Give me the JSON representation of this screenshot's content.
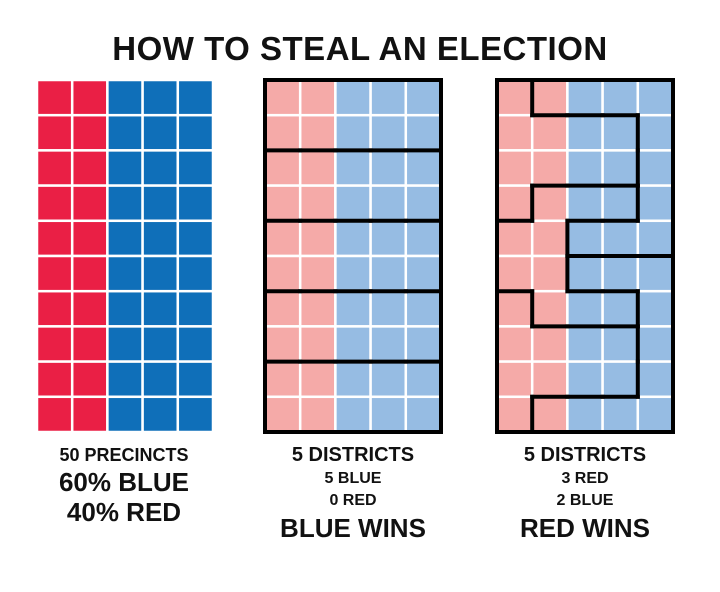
{
  "title": "HOW TO STEAL AN ELECTION",
  "colors": {
    "red": "#ea1f45",
    "blue": "#0f6fb9",
    "light_red": "#f5aaa8",
    "light_blue": "#96bce3",
    "cell_border": "#ffffff",
    "district_border": "#000000"
  },
  "grid": {
    "rows": 10,
    "cols": 5,
    "red_columns": 2
  },
  "panels": [
    {
      "caption": [
        "50 PRECINCTS",
        "60% BLUE",
        "40% RED"
      ],
      "style": "solid",
      "districts": null
    },
    {
      "caption": [
        "5 DISTRICTS",
        "5 BLUE",
        "0 RED",
        "BLUE WINS"
      ],
      "style": "light",
      "districts": [
        [
          1,
          1,
          1,
          1,
          1
        ],
        [
          1,
          1,
          1,
          1,
          1
        ],
        [
          2,
          2,
          2,
          2,
          2
        ],
        [
          2,
          2,
          2,
          2,
          2
        ],
        [
          3,
          3,
          3,
          3,
          3
        ],
        [
          3,
          3,
          3,
          3,
          3
        ],
        [
          4,
          4,
          4,
          4,
          4
        ],
        [
          4,
          4,
          4,
          4,
          4
        ],
        [
          5,
          5,
          5,
          5,
          5
        ],
        [
          5,
          5,
          5,
          5,
          5
        ]
      ]
    },
    {
      "caption": [
        "5 DISTRICTS",
        "3 RED",
        "2 BLUE",
        "RED WINS"
      ],
      "style": "light",
      "districts": [
        [
          2,
          1,
          1,
          1,
          1
        ],
        [
          2,
          2,
          2,
          2,
          1
        ],
        [
          2,
          2,
          2,
          2,
          1
        ],
        [
          2,
          3,
          3,
          3,
          1
        ],
        [
          3,
          3,
          1,
          1,
          1
        ],
        [
          3,
          3,
          4,
          4,
          4
        ],
        [
          5,
          3,
          3,
          3,
          4
        ],
        [
          5,
          5,
          5,
          5,
          4
        ],
        [
          5,
          5,
          5,
          5,
          4
        ],
        [
          5,
          4,
          4,
          4,
          4
        ]
      ]
    }
  ]
}
